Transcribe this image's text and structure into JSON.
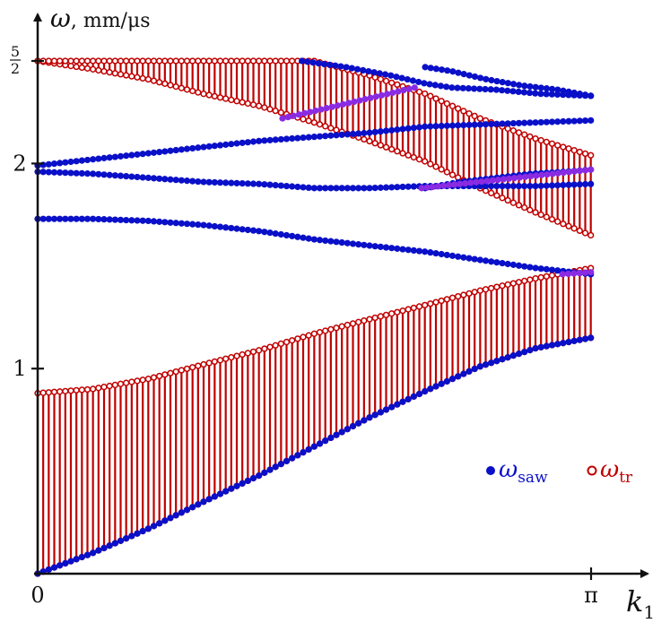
{
  "chart_data": {
    "type": "scatter",
    "title": "",
    "ylabel": {
      "symbol": "ω",
      "unit": ", mm/μs"
    },
    "xlabel": {
      "base": "k",
      "sub": "1"
    },
    "xlim": [
      0,
      3.14159
    ],
    "ylim": [
      0,
      2.5
    ],
    "x_ticks": [
      {
        "value": 0,
        "label": "0"
      },
      {
        "value": 3.14159,
        "label": "π"
      }
    ],
    "y_ticks": [
      {
        "value": 1,
        "label": "1"
      },
      {
        "value": 2,
        "label": "2"
      },
      {
        "value": 2.5,
        "label": "5/2",
        "fraction": {
          "num": "5",
          "den": "2"
        }
      }
    ],
    "legend": {
      "placement": "right",
      "entries": [
        {
          "marker": "filled",
          "symbol": "ω",
          "sub": "saw",
          "color": "#0a10c8"
        },
        {
          "marker": "hollow",
          "symbol": "ω",
          "sub": "tr",
          "color": "#c00000"
        }
      ]
    },
    "colors": {
      "saw": "#0a10c8",
      "tr": "#c00000",
      "overlap": "#8a2be2",
      "axis": "#111111"
    },
    "bands": [
      {
        "name": "",
        "lower": {
          "x": [
            0,
            0.31,
            0.63,
            0.94,
            1.26,
            1.57,
            1.88,
            2.2,
            2.51,
            2.83,
            3.14
          ],
          "y": [
            0,
            0.1,
            0.22,
            0.35,
            0.48,
            0.62,
            0.76,
            0.89,
            1.01,
            1.1,
            1.15
          ]
        },
        "upper": {
          "x": [
            0,
            0.31,
            0.63,
            0.94,
            1.26,
            1.57,
            1.88,
            2.2,
            2.51,
            2.83,
            3.14
          ],
          "y": [
            0.88,
            0.9,
            0.95,
            1.02,
            1.09,
            1.17,
            1.24,
            1.31,
            1.38,
            1.44,
            1.49
          ]
        }
      },
      {
        "name": "",
        "lower": {
          "x": [
            0,
            0.31,
            0.63,
            0.94,
            1.26,
            1.57,
            1.88,
            2.2,
            2.51,
            2.83,
            3.14
          ],
          "y": [
            2.5,
            2.46,
            2.41,
            2.34,
            2.28,
            2.2,
            2.11,
            2.01,
            1.88,
            1.76,
            1.65
          ]
        },
        "upper": {
          "x": [
            0,
            0.31,
            0.63,
            0.94,
            1.26,
            1.57,
            1.88,
            2.2,
            2.51,
            2.83,
            3.14
          ],
          "y": [
            2.5,
            2.5,
            2.5,
            2.5,
            2.5,
            2.5,
            2.43,
            2.34,
            2.22,
            2.12,
            2.04
          ]
        }
      }
    ],
    "saw_series": [
      {
        "x": [
          0,
          0.31,
          0.63,
          0.94,
          1.26,
          1.57,
          1.88,
          2.2,
          2.51,
          2.83,
          3.14
        ],
        "y": [
          0,
          0.1,
          0.22,
          0.35,
          0.48,
          0.62,
          0.76,
          0.89,
          1.01,
          1.1,
          1.15
        ]
      },
      {
        "x": [
          0,
          0.31,
          0.63,
          0.94,
          1.26,
          1.57,
          1.88,
          2.2,
          2.51,
          2.83,
          3.14
        ],
        "y": [
          1.73,
          1.73,
          1.72,
          1.7,
          1.67,
          1.63,
          1.6,
          1.57,
          1.53,
          1.49,
          1.46
        ]
      },
      {
        "x": [
          0,
          0.31,
          0.63,
          0.94,
          1.26,
          1.57,
          1.88,
          2.2,
          2.51,
          2.83,
          3.14
        ],
        "y": [
          1.96,
          1.95,
          1.93,
          1.91,
          1.9,
          1.88,
          1.88,
          1.89,
          1.89,
          1.89,
          1.9
        ]
      },
      {
        "x": [
          0,
          0.31,
          0.63,
          0.94,
          1.26,
          1.57,
          1.88,
          2.2,
          2.51,
          2.83,
          3.14
        ],
        "y": [
          1.99,
          2.02,
          2.05,
          2.08,
          2.11,
          2.13,
          2.15,
          2.18,
          2.19,
          2.2,
          2.21
        ]
      },
      {
        "x": [
          1.5,
          1.75,
          2.0,
          2.2,
          2.35,
          2.6,
          2.85,
          3.14
        ],
        "y": [
          2.5,
          2.47,
          2.43,
          2.39,
          2.37,
          2.36,
          2.34,
          2.33
        ]
      },
      {
        "x": [
          2.2,
          2.35,
          2.55,
          2.75,
          2.95,
          3.14
        ],
        "y": [
          2.47,
          2.45,
          2.41,
          2.38,
          2.36,
          2.33
        ]
      },
      {
        "x": [
          2.2,
          2.4,
          2.6,
          2.8,
          3.0,
          3.14
        ],
        "y": [
          1.88,
          1.91,
          1.93,
          1.95,
          1.96,
          1.97
        ]
      }
    ],
    "overlap_segments": [
      {
        "x": [
          1.39,
          2.14
        ],
        "y": [
          2.22,
          2.37
        ]
      },
      {
        "x": [
          2.18,
          3.14
        ],
        "y": [
          1.88,
          1.97
        ]
      },
      {
        "x": [
          2.98,
          3.14
        ],
        "y": [
          1.46,
          1.47
        ]
      }
    ]
  }
}
